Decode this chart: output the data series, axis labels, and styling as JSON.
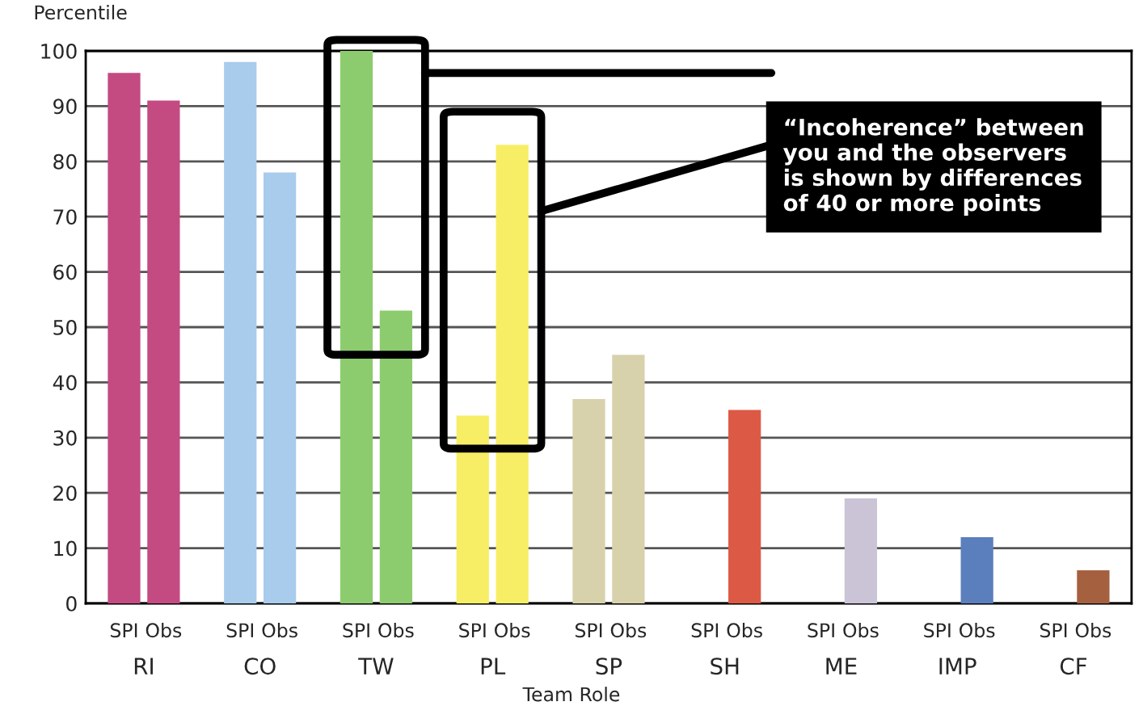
{
  "chart_data": {
    "type": "bar",
    "ylabel": "Percentile",
    "xlabel": "Team Role",
    "categories": [
      "RI",
      "CO",
      "TW",
      "PL",
      "SP",
      "SH",
      "ME",
      "IMP",
      "CF"
    ],
    "series": [
      {
        "name": "SPI",
        "values": [
          96,
          98,
          100,
          34,
          37,
          0,
          0,
          0,
          0
        ],
        "colors": [
          "#c44a82",
          "#a9cbec",
          "#8dcc6e",
          "#f7ee66",
          "#d8d2ac",
          "#dc5a45",
          "#cbc3d6",
          "#5b7fbc",
          "#a5603f"
        ]
      },
      {
        "name": "Obs",
        "values": [
          91,
          78,
          53,
          83,
          45,
          35,
          19,
          12,
          6
        ],
        "colors": [
          "#c44a82",
          "#a9cbec",
          "#8dcc6e",
          "#f7ee66",
          "#d8d2ac",
          "#dc5a45",
          "#cbc3d6",
          "#5b7fbc",
          "#a5603f"
        ]
      }
    ],
    "ylim": [
      0,
      100
    ],
    "yticks": [
      0,
      10,
      20,
      30,
      40,
      50,
      60,
      70,
      80,
      90,
      100
    ],
    "grid": "y",
    "legend": false,
    "annotations": [
      "“Incoherence” between\nyou and the observers\nis shown by differences\nof 40 or more points"
    ]
  }
}
